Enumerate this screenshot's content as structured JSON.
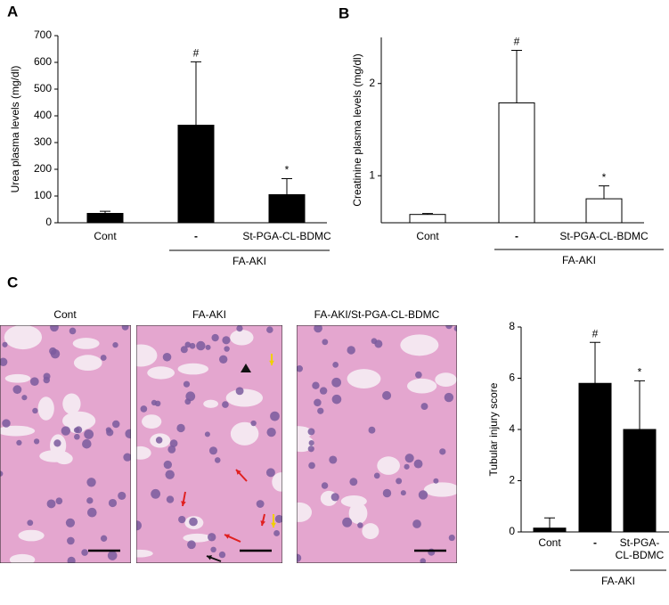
{
  "panels": [
    "A",
    "B",
    "C"
  ],
  "images": [
    {
      "caption": "Cont"
    },
    {
      "caption": "FA-AKI"
    },
    {
      "caption": "FA-AKI/St-PGA-CL-BDMC"
    }
  ],
  "chart_data": [
    {
      "type": "bar",
      "ylabel": "Urea plasma levels (mg/dl)",
      "categories": [
        "Cont",
        "-",
        "St-PGA-CL-BDMC"
      ],
      "values": [
        35,
        365,
        105
      ],
      "errors": [
        8,
        237,
        60
      ],
      "bar_labels": [
        null,
        "#",
        "*"
      ],
      "group_label": "FA-AKI",
      "color": "#000000",
      "edge": "#000000",
      "ylim": [
        0,
        700
      ],
      "yticks": [
        0,
        100,
        200,
        300,
        400,
        500,
        600,
        700
      ]
    },
    {
      "type": "bar",
      "ylabel": "Creatinine plasma levels (mg/dl)",
      "categories": [
        "Cont",
        "-",
        "St-PGA-CL-BDMC"
      ],
      "values": [
        0.58,
        1.79,
        0.75
      ],
      "errors": [
        0.01,
        0.57,
        0.14
      ],
      "bar_labels": [
        null,
        "#",
        "*"
      ],
      "group_label": "FA-AKI",
      "color": "#ffffff",
      "edge": "#000000",
      "ylim": [
        0.49,
        2.5
      ],
      "yticks": [
        1,
        2
      ]
    },
    {
      "type": "bar",
      "ylabel": "Tubular injury score",
      "categories": [
        "Cont",
        "-",
        [
          "St-PGA-",
          "CL-BDMC"
        ]
      ],
      "values": [
        0.15,
        5.8,
        4.0
      ],
      "errors": [
        0.4,
        1.6,
        1.9
      ],
      "bar_labels": [
        null,
        "#",
        "*"
      ],
      "group_label": "FA-AKI",
      "color": "#000000",
      "edge": "#000000",
      "ylim": [
        0,
        8
      ],
      "yticks": [
        0,
        2,
        4,
        6,
        8
      ]
    }
  ]
}
